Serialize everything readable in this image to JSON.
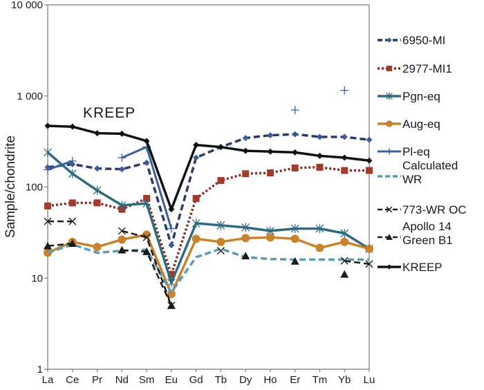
{
  "chart_data": {
    "type": "line",
    "title": "",
    "xlabel": "",
    "ylabel": "Sample/chondrite",
    "yscale": "log",
    "ylim": [
      1,
      10000
    ],
    "yticks": [
      1,
      10,
      100,
      1000,
      10000
    ],
    "ytick_labels": [
      "1",
      "10",
      "100",
      "1 000",
      "10 000"
    ],
    "categories": [
      "La",
      "Ce",
      "Pr",
      "Nd",
      "Sm",
      "Eu",
      "Gd",
      "Tb",
      "Dy",
      "Ho",
      "Er",
      "Tm",
      "Yb",
      "Lu"
    ],
    "grid": false,
    "legend_position": "right",
    "annotations": [
      {
        "text": "KREEP",
        "near": "Ce-Nd",
        "value": 580
      }
    ],
    "series": [
      {
        "name": "6950-MI",
        "color": "#2b3a6b",
        "line": "dashed",
        "marker": "diamond",
        "marker_color": "#3d5a99",
        "values": [
          165,
          178,
          160,
          157,
          185,
          23,
          210,
          275,
          345,
          370,
          380,
          355,
          355,
          330
        ]
      },
      {
        "name": "2977-MI1",
        "color": "#8b2a22",
        "line": "dotted",
        "marker": "square",
        "marker_color": "#a33a2c",
        "values": [
          62,
          67,
          67,
          57,
          75,
          11,
          75,
          118,
          140,
          143,
          162,
          165,
          152,
          152
        ]
      },
      {
        "name": "Pgn-eq",
        "color": "#2e6b80",
        "line": "solid",
        "marker": "asterisk",
        "marker_color": "#2e6b80",
        "values": [
          240,
          140,
          92,
          63,
          66,
          8.9,
          40,
          38,
          36,
          33,
          35,
          35,
          31,
          21
        ]
      },
      {
        "name": "Aug-eq",
        "color": "#c8822e",
        "line": "solid",
        "marker": "circle",
        "marker_color": "#c8822e",
        "values": [
          19,
          25,
          22,
          26.5,
          30,
          6.7,
          27,
          25,
          27.5,
          28,
          27,
          21.5,
          25,
          21
        ]
      },
      {
        "name": "Pl-eq",
        "color": "#3a5f9a",
        "line": "solid",
        "marker": "plus",
        "marker_color": "#3a5f9a",
        "values": [
          155,
          193,
          null,
          210,
          275,
          35,
          null,
          null,
          null,
          null,
          700,
          null,
          1150,
          null
        ]
      },
      {
        "name": "Calculated WR",
        "color": "#5a9ab0",
        "line": "dashed",
        "marker": "none",
        "marker_color": "#5a9ab0",
        "values": [
          19,
          23.5,
          19,
          20,
          20.5,
          7,
          17,
          21,
          17,
          16.2,
          16,
          16,
          16,
          16
        ]
      },
      {
        "name": "773-WR OC",
        "color": "#1a1a1a",
        "line": "dashed",
        "marker": "x",
        "marker_color": "#1a1a1a",
        "values": [
          42,
          42,
          null,
          33,
          28,
          5,
          null,
          20,
          null,
          null,
          null,
          null,
          15.5,
          14.3
        ]
      },
      {
        "name": "Apollo 14 Green B1",
        "color": "#1a1a1a",
        "line": "dashed",
        "marker": "triangle",
        "marker_color": "#1a1a1a",
        "values": [
          22.5,
          24,
          null,
          20.3,
          19.5,
          5,
          null,
          null,
          17.5,
          null,
          15.3,
          null,
          11,
          null
        ]
      },
      {
        "name": "KREEP",
        "color": "#111111",
        "line": "solid",
        "marker": "diamond",
        "marker_color": "#111111",
        "values": [
          470,
          460,
          390,
          385,
          320,
          57,
          290,
          275,
          250,
          245,
          240,
          220,
          210,
          195
        ]
      }
    ],
    "legend": [
      {
        "label_lines": [
          "6950-MI"
        ]
      },
      {
        "label_lines": [
          "2977-MI1"
        ]
      },
      {
        "label_lines": [
          "Pgn-eq"
        ]
      },
      {
        "label_lines": [
          "Aug-eq"
        ]
      },
      {
        "label_lines": [
          "Pl-eq"
        ]
      },
      {
        "label_lines": [
          "Calculated",
          "WR"
        ]
      },
      {
        "label_lines": [
          "773-WR OC"
        ]
      },
      {
        "label_lines": [
          "Apollo 14",
          "Green B1"
        ]
      },
      {
        "label_lines": [
          "KREEP"
        ]
      }
    ]
  }
}
